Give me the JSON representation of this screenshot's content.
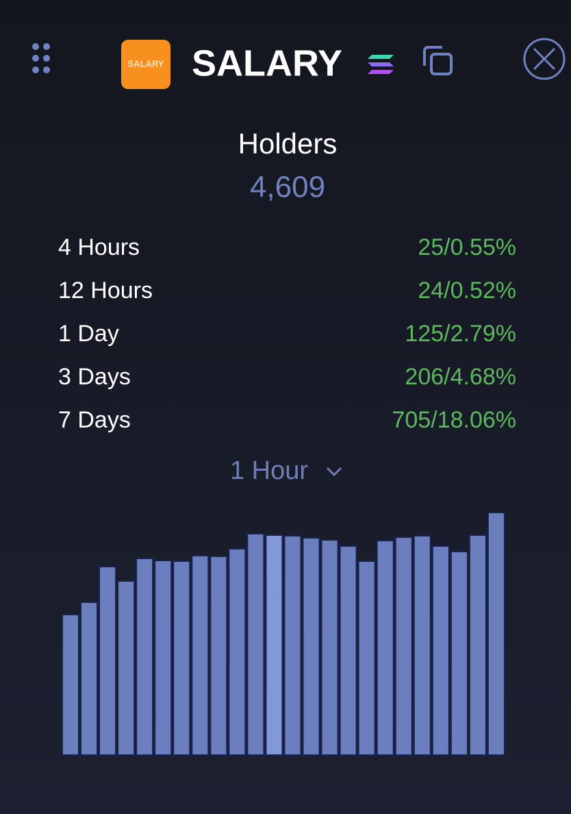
{
  "header": {
    "token_icon": "SALARY",
    "title": "SALARY"
  },
  "holders": {
    "label": "Holders",
    "value": "4,609"
  },
  "stats": [
    {
      "period": "4 Hours",
      "change": "25/0.55%"
    },
    {
      "period": "12 Hours",
      "change": "24/0.52%"
    },
    {
      "period": "1 Day",
      "change": "125/2.79%"
    },
    {
      "period": "3 Days",
      "change": "206/4.68%"
    },
    {
      "period": "7 Days",
      "change": "705/18.06%"
    }
  ],
  "interval": "1 Hour",
  "chart_data": {
    "type": "bar",
    "values": [
      205,
      223,
      275,
      254,
      287,
      284,
      283,
      291,
      290,
      301,
      323,
      321,
      320,
      317,
      314,
      305,
      283,
      313,
      318,
      320,
      305,
      297,
      321,
      354
    ],
    "ylim": [
      0,
      360
    ],
    "color": "#6b7fbf",
    "highlight_color": "#8398d8",
    "highlight_index": 11
  }
}
